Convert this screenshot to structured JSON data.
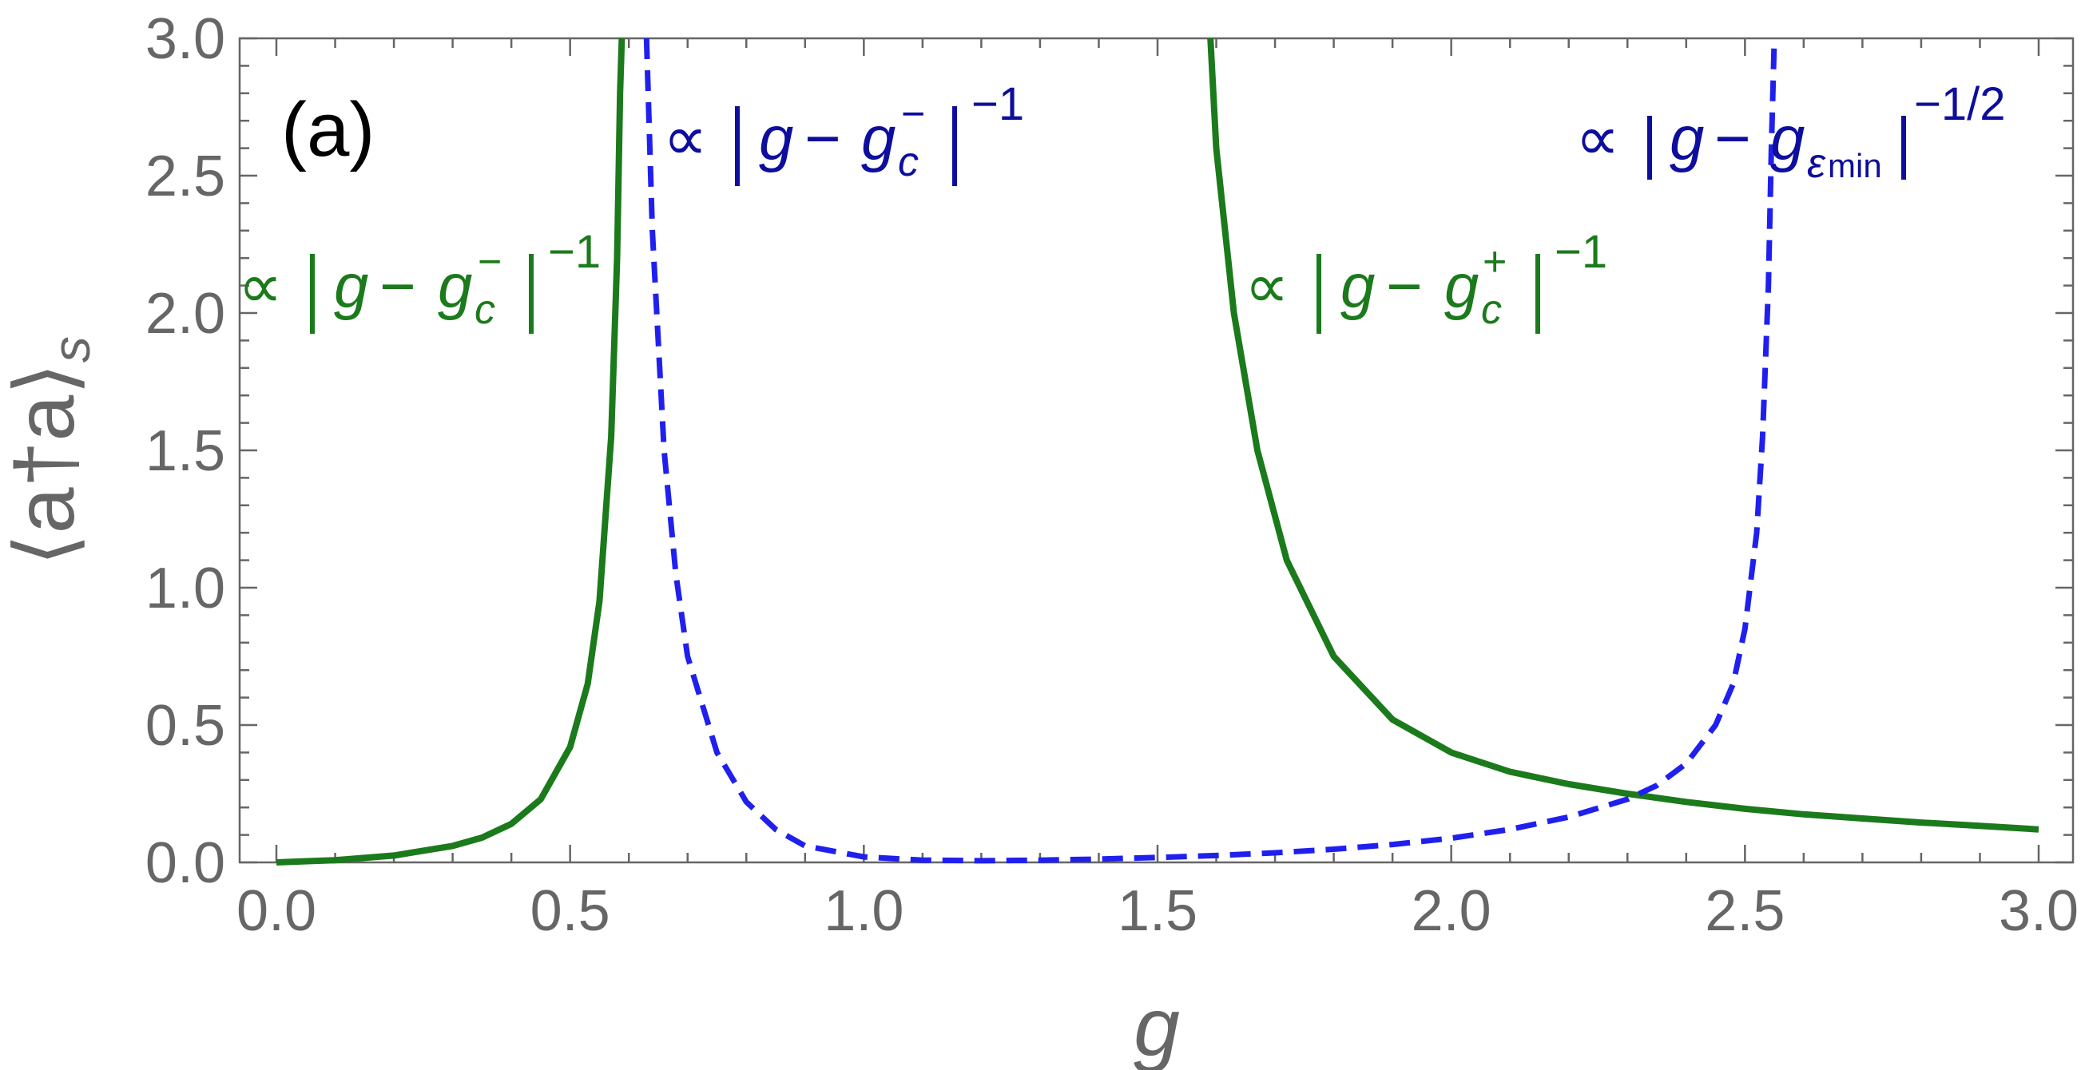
{
  "chart_data": {
    "type": "line",
    "panel_label": "(a)",
    "xlabel": "g",
    "ylabel": {
      "main": "⟨a†a⟩",
      "sub": "s"
    },
    "xlim": [
      0.0,
      3.0
    ],
    "ylim": [
      0.0,
      3.0
    ],
    "x_ticks": [
      "0.0",
      "0.5",
      "1.0",
      "1.5",
      "2.0",
      "2.5",
      "3.0"
    ],
    "y_ticks": [
      "0.0",
      "0.5",
      "1.0",
      "1.5",
      "2.0",
      "2.5",
      "3.0"
    ],
    "grid": false,
    "colors": {
      "green": "#1b7a1b",
      "blue": "#2020ee",
      "axis": "#666666",
      "annotation_blue": "#0d0d9e"
    },
    "series": [
      {
        "style": "solid",
        "color": "#1b7a1b",
        "segments": [
          [
            [
              0.0,
              0.0
            ],
            [
              0.1,
              0.008
            ],
            [
              0.2,
              0.025
            ],
            [
              0.3,
              0.06
            ],
            [
              0.35,
              0.09
            ],
            [
              0.4,
              0.14
            ],
            [
              0.45,
              0.23
            ],
            [
              0.5,
              0.42
            ],
            [
              0.53,
              0.65
            ],
            [
              0.55,
              0.95
            ],
            [
              0.57,
              1.55
            ],
            [
              0.58,
              2.2
            ],
            [
              0.585,
              2.8
            ],
            [
              0.588,
              3.0
            ]
          ],
          [
            [
              1.59,
              3.0
            ],
            [
              1.6,
              2.6
            ],
            [
              1.63,
              2.0
            ],
            [
              1.67,
              1.5
            ],
            [
              1.72,
              1.1
            ],
            [
              1.8,
              0.75
            ],
            [
              1.9,
              0.52
            ],
            [
              2.0,
              0.4
            ],
            [
              2.1,
              0.33
            ],
            [
              2.2,
              0.285
            ],
            [
              2.3,
              0.25
            ],
            [
              2.4,
              0.22
            ],
            [
              2.5,
              0.195
            ],
            [
              2.6,
              0.175
            ],
            [
              2.7,
              0.16
            ],
            [
              2.8,
              0.145
            ],
            [
              2.9,
              0.133
            ],
            [
              3.0,
              0.12
            ]
          ]
        ]
      },
      {
        "style": "dashed",
        "color": "#2020ee",
        "segments": [
          [
            [
              0.63,
              3.0
            ],
            [
              0.64,
              2.3
            ],
            [
              0.66,
              1.5
            ],
            [
              0.68,
              1.05
            ],
            [
              0.7,
              0.75
            ],
            [
              0.75,
              0.4
            ],
            [
              0.8,
              0.22
            ],
            [
              0.85,
              0.12
            ],
            [
              0.9,
              0.06
            ],
            [
              1.0,
              0.02
            ],
            [
              1.1,
              0.008
            ],
            [
              1.2,
              0.006
            ],
            [
              1.3,
              0.008
            ],
            [
              1.4,
              0.012
            ],
            [
              1.5,
              0.018
            ],
            [
              1.6,
              0.025
            ],
            [
              1.7,
              0.035
            ],
            [
              1.8,
              0.048
            ],
            [
              1.9,
              0.065
            ],
            [
              2.0,
              0.088
            ],
            [
              2.1,
              0.12
            ],
            [
              2.2,
              0.165
            ],
            [
              2.3,
              0.23
            ],
            [
              2.35,
              0.28
            ],
            [
              2.4,
              0.36
            ],
            [
              2.45,
              0.5
            ],
            [
              2.48,
              0.65
            ],
            [
              2.5,
              0.85
            ],
            [
              2.52,
              1.2
            ],
            [
              2.53,
              1.55
            ],
            [
              2.54,
              2.1
            ],
            [
              2.545,
              2.6
            ],
            [
              2.55,
              3.0
            ]
          ]
        ]
      }
    ],
    "annotations": [
      {
        "id": "green_left",
        "color": "green",
        "prop": "∝",
        "var": "g",
        "minus": "−",
        "sym": "g",
        "sub": "c",
        "sup": "−",
        "exp": "−1"
      },
      {
        "id": "blue_left",
        "color": "blue",
        "prop": "∝",
        "var": "g",
        "minus": "−",
        "sym": "g",
        "sub": "c",
        "sup": "−",
        "exp": "−1"
      },
      {
        "id": "green_right",
        "color": "green",
        "prop": "∝",
        "var": "g",
        "minus": "−",
        "sym": "g",
        "sub": "c",
        "sup": "+",
        "exp": "−1"
      },
      {
        "id": "blue_right",
        "color": "blue",
        "prop": "∝",
        "var": "g",
        "minus": "−",
        "sym": "g",
        "sub_greek": "ε",
        "sub_small": "min",
        "exp": "−1/2"
      }
    ]
  }
}
